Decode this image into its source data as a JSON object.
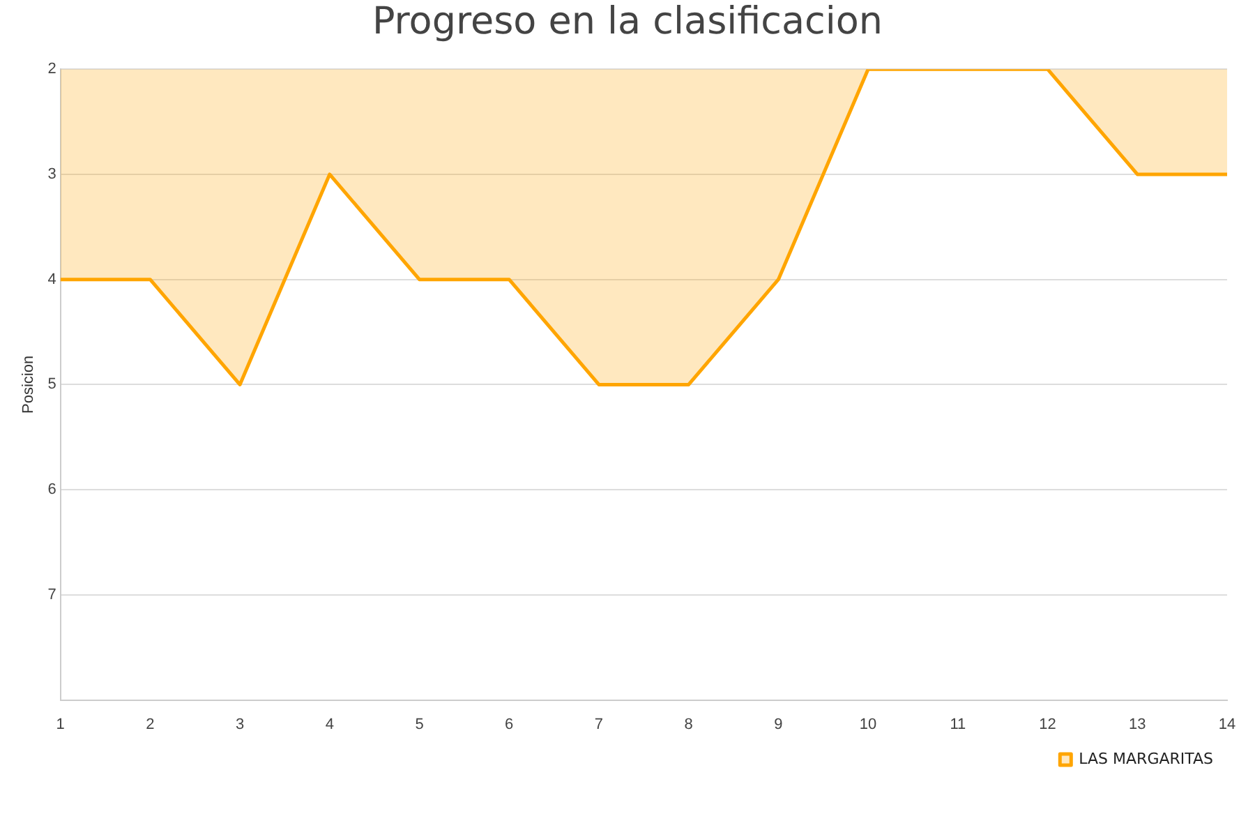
{
  "chart_data": {
    "type": "area",
    "title": "Progreso en la clasificacion",
    "ylabel": "Posicion",
    "x": [
      1,
      2,
      3,
      4,
      5,
      6,
      7,
      8,
      9,
      10,
      11,
      12,
      13,
      14
    ],
    "series": [
      {
        "name": "LAS MARGARITAS",
        "color": "#ffa500",
        "values": [
          4,
          4,
          5,
          3,
          4,
          4,
          5,
          5,
          4,
          2,
          2,
          2,
          3,
          3
        ]
      }
    ],
    "xlim": [
      1,
      14
    ],
    "xticks": [
      1,
      2,
      3,
      4,
      5,
      6,
      7,
      8,
      9,
      10,
      11,
      12,
      13,
      14
    ],
    "ylim": [
      8,
      2
    ],
    "yticks": [
      2,
      3,
      4,
      5,
      6,
      7
    ],
    "grid": "y",
    "legend": "bottom right",
    "marker": "none",
    "line_style": "solid"
  }
}
